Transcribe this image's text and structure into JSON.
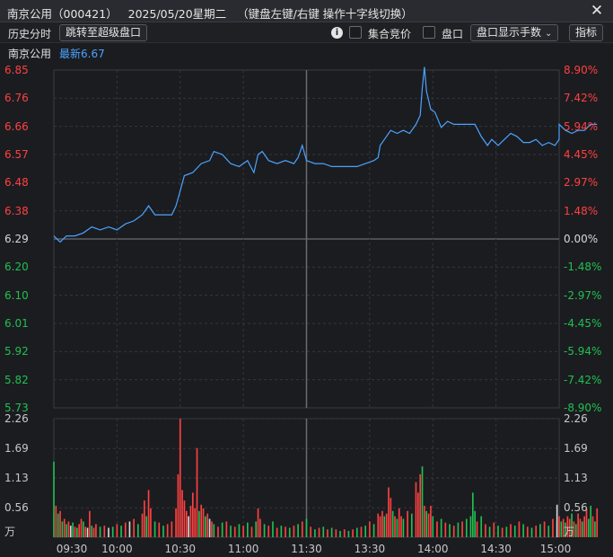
{
  "window": {
    "title": "南京公用（000421）   2025/05/20星期二   （键盘左键/右键 操作十字线切换）",
    "close_glyph": "✕"
  },
  "toolbar": {
    "history_label": "历史分时",
    "jump_button": "跳转至超级盘口",
    "info_icon": "i",
    "auction_label": "集合竞价",
    "auction_checked": false,
    "order_book_label": "盘口",
    "order_book_checked": false,
    "order_book_display": "盘口显示手数",
    "indicator_button": "指标"
  },
  "info": {
    "stock_name": "南京公用",
    "latest_label": "最新6.67"
  },
  "colors": {
    "up": "#ff4040",
    "down": "#20c050",
    "flat": "#d8d8d8",
    "price_line": "#4aa3ff",
    "accent": "#4aa3ff"
  },
  "chart_data": {
    "type": "line",
    "subtype": "intraday_timeshare",
    "prev_close": 6.29,
    "price_axis": {
      "ticks": [
        "6.85",
        "6.76",
        "6.66",
        "6.57",
        "6.48",
        "6.38",
        "6.29",
        "6.20",
        "6.10",
        "6.01",
        "5.92",
        "5.82",
        "5.73"
      ],
      "range": [
        5.73,
        6.85
      ]
    },
    "percent_axis": {
      "ticks": [
        "8.90%",
        "7.42%",
        "5.94%",
        "4.45%",
        "2.97%",
        "1.48%",
        "0.00%",
        "-1.48%",
        "-2.97%",
        "-4.45%",
        "-5.94%",
        "-7.42%",
        "-8.90%"
      ]
    },
    "volume_axis": {
      "ticks": [
        "2.26",
        "1.69",
        "1.13",
        "0.56"
      ],
      "unit": "万",
      "range": [
        0,
        2.26
      ]
    },
    "time_axis": {
      "ticks": [
        "09:30",
        "10:00",
        "10:30",
        "11:00",
        "11:30",
        "13:30",
        "14:00",
        "14:30",
        "15:00"
      ]
    },
    "price_series": [
      [
        0,
        6.3
      ],
      [
        3,
        6.28
      ],
      [
        6,
        6.3
      ],
      [
        10,
        6.3
      ],
      [
        14,
        6.31
      ],
      [
        18,
        6.33
      ],
      [
        22,
        6.32
      ],
      [
        26,
        6.33
      ],
      [
        30,
        6.32
      ],
      [
        34,
        6.34
      ],
      [
        38,
        6.35
      ],
      [
        42,
        6.37
      ],
      [
        45,
        6.4
      ],
      [
        48,
        6.37
      ],
      [
        52,
        6.37
      ],
      [
        56,
        6.37
      ],
      [
        58,
        6.4
      ],
      [
        60,
        6.45
      ],
      [
        62,
        6.5
      ],
      [
        66,
        6.51
      ],
      [
        70,
        6.54
      ],
      [
        74,
        6.55
      ],
      [
        76,
        6.58
      ],
      [
        80,
        6.57
      ],
      [
        84,
        6.54
      ],
      [
        88,
        6.53
      ],
      [
        92,
        6.55
      ],
      [
        95,
        6.51
      ],
      [
        97,
        6.57
      ],
      [
        99,
        6.58
      ],
      [
        102,
        6.55
      ],
      [
        106,
        6.54
      ],
      [
        110,
        6.55
      ],
      [
        114,
        6.54
      ],
      [
        116,
        6.56
      ],
      [
        118,
        6.6
      ],
      [
        120,
        6.55
      ],
      [
        124,
        6.54
      ],
      [
        128,
        6.54
      ],
      [
        132,
        6.53
      ],
      [
        136,
        6.53
      ],
      [
        140,
        6.53
      ],
      [
        144,
        6.53
      ],
      [
        148,
        6.54
      ],
      [
        152,
        6.55
      ],
      [
        154,
        6.56
      ],
      [
        155,
        6.6
      ],
      [
        157,
        6.62
      ],
      [
        160,
        6.65
      ],
      [
        163,
        6.64
      ],
      [
        166,
        6.65
      ],
      [
        169,
        6.64
      ],
      [
        172,
        6.67
      ],
      [
        174,
        6.7
      ],
      [
        175,
        6.79
      ],
      [
        176,
        6.86
      ],
      [
        177,
        6.78
      ],
      [
        179,
        6.72
      ],
      [
        181,
        6.71
      ],
      [
        184,
        6.66
      ],
      [
        187,
        6.68
      ],
      [
        190,
        6.67
      ],
      [
        195,
        6.67
      ],
      [
        200,
        6.67
      ],
      [
        203,
        6.63
      ],
      [
        206,
        6.6
      ],
      [
        208,
        6.62
      ],
      [
        211,
        6.6
      ],
      [
        214,
        6.62
      ],
      [
        217,
        6.64
      ],
      [
        220,
        6.63
      ],
      [
        223,
        6.61
      ],
      [
        226,
        6.61
      ],
      [
        229,
        6.62
      ],
      [
        232,
        6.6
      ],
      [
        235,
        6.61
      ],
      [
        238,
        6.6
      ],
      [
        240,
        6.62
      ],
      [
        243,
        6.65
      ],
      [
        246,
        6.64
      ],
      [
        249,
        6.65
      ],
      [
        252,
        6.65
      ],
      [
        255,
        6.67
      ],
      [
        258,
        6.67
      ],
      [
        240,
        6.67
      ]
    ],
    "volume_series": [
      [
        0,
        1.44,
        "down"
      ],
      [
        1,
        0.6,
        "up"
      ],
      [
        2,
        0.45,
        "down"
      ],
      [
        3,
        0.5,
        "up"
      ],
      [
        4,
        0.3,
        "down"
      ],
      [
        5,
        0.35,
        "up"
      ],
      [
        6,
        0.25,
        "down"
      ],
      [
        7,
        0.3,
        "up"
      ],
      [
        8,
        0.22,
        "flat"
      ],
      [
        9,
        0.28,
        "down"
      ],
      [
        10,
        0.2,
        "up"
      ],
      [
        11,
        0.18,
        "down"
      ],
      [
        12,
        0.25,
        "up"
      ],
      [
        13,
        0.35,
        "up"
      ],
      [
        14,
        0.3,
        "down"
      ],
      [
        15,
        0.2,
        "up"
      ],
      [
        16,
        0.18,
        "flat"
      ],
      [
        17,
        0.5,
        "up"
      ],
      [
        18,
        0.22,
        "down"
      ],
      [
        19,
        0.18,
        "up"
      ],
      [
        20,
        0.25,
        "up"
      ],
      [
        22,
        0.2,
        "down"
      ],
      [
        24,
        0.22,
        "up"
      ],
      [
        26,
        0.18,
        "flat"
      ],
      [
        28,
        0.2,
        "down"
      ],
      [
        30,
        0.25,
        "up"
      ],
      [
        32,
        0.22,
        "down"
      ],
      [
        34,
        0.28,
        "up"
      ],
      [
        36,
        0.3,
        "flat"
      ],
      [
        38,
        0.35,
        "up"
      ],
      [
        40,
        0.25,
        "down"
      ],
      [
        42,
        0.45,
        "up"
      ],
      [
        43,
        0.7,
        "up"
      ],
      [
        44,
        0.4,
        "down"
      ],
      [
        45,
        0.9,
        "up"
      ],
      [
        46,
        0.55,
        "up"
      ],
      [
        48,
        0.3,
        "down"
      ],
      [
        50,
        0.28,
        "up"
      ],
      [
        52,
        0.22,
        "down"
      ],
      [
        54,
        0.25,
        "up"
      ],
      [
        56,
        0.3,
        "up"
      ],
      [
        58,
        0.55,
        "up"
      ],
      [
        59,
        1.2,
        "up"
      ],
      [
        60,
        2.26,
        "up"
      ],
      [
        61,
        0.9,
        "up"
      ],
      [
        62,
        0.7,
        "up"
      ],
      [
        63,
        0.5,
        "up"
      ],
      [
        64,
        0.4,
        "flat"
      ],
      [
        65,
        0.6,
        "up"
      ],
      [
        66,
        0.85,
        "up"
      ],
      [
        67,
        0.55,
        "up"
      ],
      [
        68,
        1.7,
        "up"
      ],
      [
        69,
        0.5,
        "down"
      ],
      [
        70,
        0.62,
        "up"
      ],
      [
        71,
        0.55,
        "up"
      ],
      [
        72,
        0.4,
        "down"
      ],
      [
        73,
        0.45,
        "up"
      ],
      [
        74,
        0.35,
        "flat"
      ],
      [
        75,
        0.3,
        "up"
      ],
      [
        76,
        0.25,
        "down"
      ],
      [
        78,
        0.2,
        "up"
      ],
      [
        80,
        0.28,
        "down"
      ],
      [
        82,
        0.3,
        "up"
      ],
      [
        84,
        0.22,
        "down"
      ],
      [
        86,
        0.2,
        "up"
      ],
      [
        88,
        0.25,
        "down"
      ],
      [
        90,
        0.22,
        "up"
      ],
      [
        92,
        0.28,
        "down"
      ],
      [
        94,
        0.2,
        "up"
      ],
      [
        96,
        0.3,
        "down"
      ],
      [
        97,
        0.55,
        "up"
      ],
      [
        98,
        0.35,
        "up"
      ],
      [
        100,
        0.25,
        "down"
      ],
      [
        102,
        0.22,
        "up"
      ],
      [
        104,
        0.3,
        "down"
      ],
      [
        106,
        0.18,
        "up"
      ],
      [
        108,
        0.22,
        "down"
      ],
      [
        110,
        0.2,
        "up"
      ],
      [
        112,
        0.18,
        "down"
      ],
      [
        114,
        0.22,
        "up"
      ],
      [
        116,
        0.25,
        "down"
      ],
      [
        118,
        0.3,
        "up"
      ],
      [
        120,
        0.35,
        "down"
      ],
      [
        122,
        0.2,
        "up"
      ],
      [
        124,
        0.15,
        "down"
      ],
      [
        126,
        0.18,
        "up"
      ],
      [
        128,
        0.2,
        "down"
      ],
      [
        130,
        0.15,
        "up"
      ],
      [
        132,
        0.18,
        "down"
      ],
      [
        134,
        0.15,
        "up"
      ],
      [
        136,
        0.12,
        "down"
      ],
      [
        138,
        0.15,
        "up"
      ],
      [
        140,
        0.12,
        "down"
      ],
      [
        142,
        0.15,
        "up"
      ],
      [
        144,
        0.18,
        "down"
      ],
      [
        146,
        0.2,
        "up"
      ],
      [
        148,
        0.22,
        "down"
      ],
      [
        150,
        0.3,
        "up"
      ],
      [
        152,
        0.25,
        "down"
      ],
      [
        154,
        0.45,
        "up"
      ],
      [
        155,
        0.4,
        "up"
      ],
      [
        156,
        0.5,
        "up"
      ],
      [
        157,
        0.4,
        "down"
      ],
      [
        158,
        0.45,
        "up"
      ],
      [
        159,
        0.95,
        "up"
      ],
      [
        160,
        0.75,
        "up"
      ],
      [
        161,
        0.5,
        "down"
      ],
      [
        162,
        0.4,
        "up"
      ],
      [
        163,
        0.35,
        "down"
      ],
      [
        164,
        0.55,
        "up"
      ],
      [
        165,
        0.4,
        "up"
      ],
      [
        166,
        0.35,
        "down"
      ],
      [
        168,
        0.5,
        "up"
      ],
      [
        170,
        0.45,
        "down"
      ],
      [
        172,
        1.05,
        "up"
      ],
      [
        173,
        0.85,
        "up"
      ],
      [
        174,
        1.2,
        "up"
      ],
      [
        175,
        1.35,
        "down"
      ],
      [
        176,
        0.6,
        "up"
      ],
      [
        177,
        0.5,
        "down"
      ],
      [
        178,
        0.45,
        "up"
      ],
      [
        179,
        0.6,
        "up"
      ],
      [
        180,
        0.4,
        "down"
      ],
      [
        182,
        0.3,
        "up"
      ],
      [
        184,
        0.35,
        "down"
      ],
      [
        186,
        0.28,
        "up"
      ],
      [
        188,
        0.25,
        "down"
      ],
      [
        190,
        0.22,
        "up"
      ],
      [
        192,
        0.28,
        "down"
      ],
      [
        194,
        0.3,
        "up"
      ],
      [
        196,
        0.35,
        "down"
      ],
      [
        198,
        0.4,
        "down"
      ],
      [
        199,
        0.85,
        "down"
      ],
      [
        200,
        0.5,
        "down"
      ],
      [
        201,
        0.3,
        "up"
      ],
      [
        203,
        0.4,
        "down"
      ],
      [
        205,
        0.25,
        "up"
      ],
      [
        207,
        0.2,
        "down"
      ],
      [
        209,
        0.28,
        "up"
      ],
      [
        211,
        0.22,
        "down"
      ],
      [
        213,
        0.18,
        "up"
      ],
      [
        215,
        0.2,
        "down"
      ],
      [
        217,
        0.25,
        "up"
      ],
      [
        219,
        0.22,
        "down"
      ],
      [
        221,
        0.3,
        "up"
      ],
      [
        223,
        0.25,
        "down"
      ],
      [
        225,
        0.2,
        "up"
      ],
      [
        227,
        0.18,
        "down"
      ],
      [
        229,
        0.22,
        "up"
      ],
      [
        231,
        0.25,
        "down"
      ],
      [
        233,
        0.3,
        "up"
      ],
      [
        235,
        0.22,
        "down"
      ],
      [
        237,
        0.35,
        "up"
      ],
      [
        239,
        0.3,
        "down"
      ],
      [
        240,
        0.4,
        "up"
      ],
      [
        241,
        0.3,
        "down"
      ],
      [
        242,
        0.35,
        "up"
      ],
      [
        243,
        0.28,
        "down"
      ],
      [
        244,
        0.4,
        "up"
      ],
      [
        245,
        0.35,
        "up"
      ],
      [
        246,
        0.45,
        "down"
      ],
      [
        247,
        0.3,
        "up"
      ],
      [
        248,
        0.25,
        "down"
      ],
      [
        249,
        0.45,
        "up"
      ],
      [
        250,
        0.35,
        "up"
      ],
      [
        251,
        0.3,
        "down"
      ],
      [
        252,
        0.4,
        "up"
      ],
      [
        253,
        0.55,
        "up"
      ],
      [
        254,
        0.35,
        "down"
      ],
      [
        255,
        0.6,
        "down"
      ],
      [
        256,
        0.4,
        "up"
      ],
      [
        257,
        0.3,
        "down"
      ],
      [
        258,
        0.55,
        "up"
      ],
      [
        239,
        0.62,
        "flat"
      ]
    ]
  }
}
